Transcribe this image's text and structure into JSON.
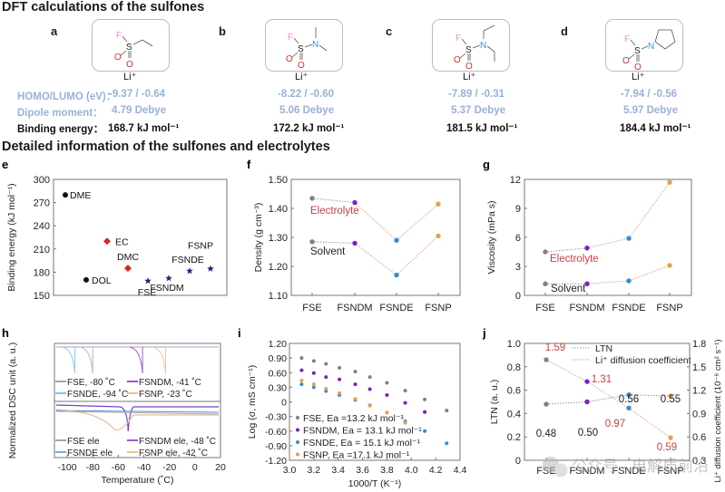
{
  "section1": {
    "title": "DFT calculations of the sulfones",
    "row_labels": {
      "homo_lumo": "HOMO/LUMO (eV)：",
      "dipole": "Dipole moment：",
      "binding": "Binding energy："
    },
    "molecules": [
      {
        "panel": "a",
        "li": "Li⁺",
        "homo_lumo": "-9.37 / -0.64",
        "dipole": "4.79 Debye",
        "binding": "168.7 kJ mol⁻¹"
      },
      {
        "panel": "b",
        "li": "Li⁺",
        "homo_lumo": "-8.22 / -0.60",
        "dipole": "5.06 Debye",
        "binding": "172.2 kJ mol⁻¹"
      },
      {
        "panel": "c",
        "li": "Li⁺",
        "homo_lumo": "-7.89 / -0.31",
        "dipole": "5.37 Debye",
        "binding": "181.5 kJ mol⁻¹"
      },
      {
        "panel": "d",
        "li": "Li⁺",
        "homo_lumo": "-7.94 / -0.56",
        "dipole": "5.97 Debye",
        "binding": "184.4 kJ mol⁻¹"
      }
    ],
    "atoms": {
      "F": "F",
      "S": "S",
      "O": "O",
      "N": "N"
    }
  },
  "section2": {
    "title": "Detailed information of the sulfones and electrolytes"
  },
  "colors": {
    "FSE": "#808080",
    "FSNDM": "#7a1fc2",
    "FSNDE": "#2e8fd6",
    "FSNP": "#e8a050",
    "red": "#d62828",
    "black": "#111111",
    "navy": "#1a237e",
    "label_blue": "#9ab0d8",
    "label_red": "#c94040"
  },
  "chart_data": [
    {
      "panel": "e",
      "type": "scatter",
      "ylabel": "Binding energy (kJ mol⁻¹)",
      "ylim": [
        150,
        300
      ],
      "yticks": [
        "300",
        "270",
        "240",
        "210",
        "180",
        "150"
      ],
      "points": [
        {
          "name": "DME",
          "y": 280,
          "group": "ether"
        },
        {
          "name": "DOL",
          "y": 170,
          "group": "ether"
        },
        {
          "name": "EC",
          "y": 220,
          "group": "carbonate"
        },
        {
          "name": "DMC",
          "y": 185,
          "group": "carbonate"
        },
        {
          "name": "FSE",
          "y": 168.7,
          "group": "sulfone"
        },
        {
          "name": "FSNDM",
          "y": 172.2,
          "group": "sulfone"
        },
        {
          "name": "FSNDE",
          "y": 181.5,
          "group": "sulfone"
        },
        {
          "name": "FSNP",
          "y": 184.4,
          "group": "sulfone"
        }
      ]
    },
    {
      "panel": "f",
      "type": "line",
      "ylabel": "Density (g cm⁻³)",
      "ylim": [
        1.1,
        1.5
      ],
      "yticks": [
        "1.50",
        "1.40",
        "1.30",
        "1.20",
        "1.10"
      ],
      "categories": [
        "FSE",
        "FSNDM",
        "FSNDE",
        "FSNP"
      ],
      "series": [
        {
          "name": "Electrolyte",
          "values": [
            1.435,
            1.42,
            1.29,
            1.415
          ]
        },
        {
          "name": "Solvent",
          "values": [
            1.285,
            1.28,
            1.17,
            1.305
          ]
        }
      ]
    },
    {
      "panel": "g",
      "type": "line",
      "ylabel": "Viscosity (mPa s)",
      "ylim": [
        0,
        12
      ],
      "yticks": [
        "12",
        "9",
        "6",
        "3",
        "0"
      ],
      "categories": [
        "FSE",
        "FSNDM",
        "FSNDE",
        "FSNP"
      ],
      "series": [
        {
          "name": "Electrolyte",
          "values": [
            4.5,
            4.9,
            5.9,
            11.7
          ]
        },
        {
          "name": "Solvent",
          "values": [
            1.2,
            1.2,
            1.5,
            3.1
          ]
        }
      ]
    },
    {
      "panel": "h",
      "type": "line",
      "ylabel": "Normalized DSC unit (a. u.)",
      "xlabel": "Temperature (˚C)",
      "xlim": [
        -110,
        20
      ],
      "xticks": [
        "-100",
        "-80",
        "-60",
        "-40",
        "-20",
        "0",
        "20"
      ],
      "top_legend": [
        "FSE, -80 ˚C",
        "FSNDM, -41 ˚C",
        "FSNDE, -94 ˚C",
        "FSNP, -23 ˚C"
      ],
      "bottom_legend": [
        "FSE ele",
        "FSNDM ele, -48 ˚C",
        "FSNDE ele",
        "FSNP ele, -42 ˚C"
      ],
      "solvent_peaks": [
        {
          "name": "FSE",
          "x": -80
        },
        {
          "name": "FSNDM",
          "x": -41
        },
        {
          "name": "FSNDE",
          "x": -94
        },
        {
          "name": "FSNP",
          "x": -23
        }
      ],
      "electrolyte_peaks": [
        {
          "name": "FSNDM",
          "x": -48
        },
        {
          "name": "FSNP",
          "x": -42
        }
      ]
    },
    {
      "panel": "i",
      "type": "scatter",
      "ylabel": "Log (σ, mS cm⁻¹)",
      "xlabel": "1000/T (K⁻¹)",
      "xlim": [
        3.0,
        4.4
      ],
      "ylim": [
        -1.2,
        1.2
      ],
      "xticks": [
        "3.0",
        "3.2",
        "3.4",
        "3.6",
        "3.8",
        "4.0",
        "4.2",
        "4.4"
      ],
      "yticks": [
        "1.20",
        "0.90",
        "0.60",
        "0.30",
        "0",
        "-0.30",
        "-0.60",
        "-0.90",
        "-1.20"
      ],
      "series": [
        {
          "name": "FSE",
          "legend": "FSE, Ea =13.2 kJ mol⁻¹",
          "x": [
            3.1,
            3.2,
            3.3,
            3.41,
            3.54,
            3.66,
            3.8,
            3.95,
            4.11,
            4.29
          ],
          "y": [
            0.9,
            0.84,
            0.78,
            0.7,
            0.62,
            0.51,
            0.39,
            0.23,
            0.05,
            -0.18
          ]
        },
        {
          "name": "FSNDM",
          "legend": "FSNDM, Ea = 13.1 kJ mol⁻¹",
          "x": [
            3.1,
            3.2,
            3.3,
            3.41,
            3.54,
            3.66,
            3.8,
            3.95,
            4.11
          ],
          "y": [
            0.65,
            0.59,
            0.51,
            0.46,
            0.36,
            0.26,
            0.14,
            -0.02,
            -0.21
          ]
        },
        {
          "name": "FSNDE",
          "legend": "FSNDE, Ea = 15.1 kJ mol⁻¹",
          "x": [
            3.1,
            3.2,
            3.3,
            3.41,
            3.54,
            3.66,
            3.8,
            3.95,
            4.11,
            4.29
          ],
          "y": [
            0.36,
            0.3,
            0.22,
            0.14,
            0.04,
            -0.07,
            -0.22,
            -0.4,
            -0.6,
            -0.85
          ]
        },
        {
          "name": "FSNP",
          "legend": "FSNP, Ea =17.1 kJ mol⁻¹",
          "x": [
            3.1,
            3.2,
            3.3,
            3.41,
            3.54,
            3.66,
            3.8,
            3.95
          ],
          "y": [
            0.44,
            0.36,
            0.27,
            0.18,
            0.06,
            -0.08,
            -0.22,
            -0.43
          ]
        }
      ]
    },
    {
      "panel": "j",
      "type": "line",
      "ylabel": "LTN (a. u.)",
      "y2label": "Li⁺ diffusion coefficient (10⁻⁶ cm² s⁻¹)",
      "ylim": [
        0,
        1.0
      ],
      "y2lim": [
        0.3,
        1.8
      ],
      "yticks": [
        "1.0",
        "0.8",
        "0.6",
        "0.4",
        "0.2",
        "0"
      ],
      "y2ticks": [
        "1.8",
        "1.5",
        "1.2",
        "0.9",
        "0.6",
        "0.3"
      ],
      "categories": [
        "FSE",
        "FSNDM",
        "FSNDE",
        "FSNP"
      ],
      "legend": [
        "LTN",
        "Li⁺ diffusion coefficient"
      ],
      "series": [
        {
          "name": "LTN",
          "values": [
            0.48,
            0.5,
            0.56,
            0.55
          ],
          "labels": [
            "0.48",
            "0.50",
            "0.56",
            "0.55"
          ]
        },
        {
          "name": "Li⁺ diffusion coefficient",
          "values": [
            1.59,
            1.31,
            0.97,
            0.59
          ],
          "labels": [
            "1.59",
            "1.31",
            "0.97",
            "0.59"
          ]
        }
      ]
    }
  ],
  "watermark": "公众号 · 电解质前沿"
}
